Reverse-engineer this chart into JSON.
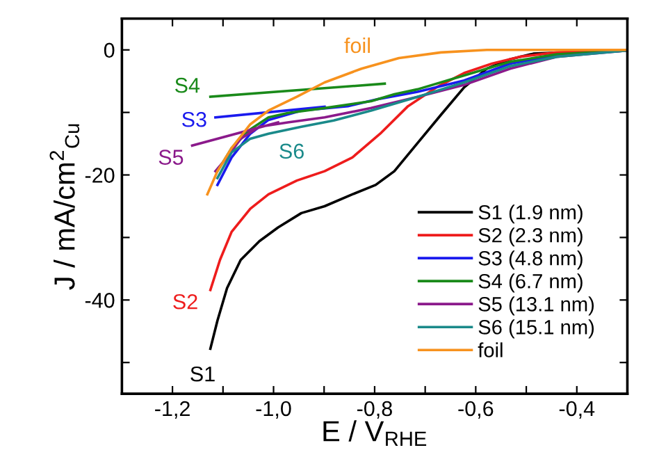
{
  "chart_data": {
    "type": "line",
    "xlabel": "E / V$_{RHE}$",
    "ylabel": "J / mA/cm$^{2}$$_{Cu}$",
    "xlim": [
      -1.3,
      -0.3
    ],
    "ylim": [
      -55,
      5
    ],
    "xticks": [
      {
        "value": -1.3,
        "label": null
      },
      {
        "value": -1.2,
        "label": "-1,2"
      },
      {
        "value": -1.1,
        "label": null
      },
      {
        "value": -1.0,
        "label": "-1,0"
      },
      {
        "value": -0.9,
        "label": null
      },
      {
        "value": -0.8,
        "label": "-0,8"
      },
      {
        "value": -0.7,
        "label": null
      },
      {
        "value": -0.6,
        "label": "-0,6"
      },
      {
        "value": -0.5,
        "label": null
      },
      {
        "value": -0.4,
        "label": "-0,4"
      }
    ],
    "yticks": [
      {
        "value": -50,
        "label": null
      },
      -40,
      {
        "value": -30,
        "label": null
      },
      -20,
      {
        "value": -10,
        "label": null
      },
      0
    ],
    "grid": false,
    "legend": "bottom right",
    "line_style": "solid",
    "marker": "none",
    "series": [
      {
        "name": "S1 (1.9 nm)",
        "color": "#000000",
        "x": [
          -1.125,
          -1.111,
          -1.092,
          -1.065,
          -1.028,
          -0.991,
          -0.945,
          -0.899,
          -0.844,
          -0.798,
          -0.761,
          -0.715,
          -0.669,
          -0.623,
          -0.578,
          -0.532,
          -0.486,
          -0.394,
          -0.302
        ],
        "values": [
          -47.8,
          -43.3,
          -38.1,
          -33.6,
          -30.6,
          -28.4,
          -26.1,
          -25.0,
          -23.1,
          -21.6,
          -19.4,
          -14.9,
          -10.4,
          -6.0,
          -3.0,
          -1.5,
          -0.6,
          -0.3,
          -0.1
        ]
      },
      {
        "name": "S2 (2.3 nm)",
        "color": "#ee1c1c",
        "x": [
          -1.125,
          -1.106,
          -1.083,
          -1.046,
          -1.01,
          -0.954,
          -0.899,
          -0.844,
          -0.789,
          -0.734,
          -0.678,
          -0.623,
          -0.568,
          -0.513,
          -0.44,
          -0.302
        ],
        "values": [
          -38.4,
          -33.6,
          -29.1,
          -25.4,
          -23.1,
          -20.9,
          -19.4,
          -17.2,
          -13.4,
          -9.0,
          -6.0,
          -3.7,
          -2.2,
          -1.1,
          -0.4,
          -0.1
        ]
      },
      {
        "name": "S3 (4.8 nm)",
        "color": "#1a1aee",
        "x": [
          -0.302,
          -0.44,
          -0.532,
          -0.623,
          -0.715,
          -0.789,
          -0.853,
          -0.945,
          -1.01,
          -1.046,
          -1.083,
          -1.111,
          -1.113,
          -1.115,
          -0.899
        ],
        "values": [
          -0.1,
          -0.9,
          -2.2,
          -4.9,
          -6.7,
          -7.8,
          -9.0,
          -9.7,
          -11.2,
          -13.4,
          -17.2,
          -21.6,
          null,
          -10.8,
          -9.1
        ]
      },
      {
        "name": "S4 (6.7 nm)",
        "color": "#1a8a1a",
        "x": [
          -0.302,
          -0.44,
          -0.532,
          -0.623,
          -0.715,
          -0.761,
          -0.807,
          -0.899,
          -0.972,
          -1.01,
          -1.046,
          -1.083,
          -1.111,
          -1.118,
          -1.125,
          -0.78
        ],
        "values": [
          -0.1,
          -0.7,
          -1.9,
          -4.1,
          -6.3,
          -7.1,
          -8.2,
          -9.3,
          -10.1,
          -10.8,
          -12.7,
          -15.7,
          -19.4,
          null,
          -7.5,
          -5.4
        ]
      },
      {
        "name": "S5 (13.1 nm)",
        "color": "#8b1a8b",
        "x": [
          -0.302,
          -0.44,
          -0.532,
          -0.623,
          -0.715,
          -0.807,
          -0.899,
          -0.972,
          -1.028,
          -1.065,
          -1.092,
          -1.115,
          -1.14,
          -1.161,
          -0.991
        ],
        "values": [
          -0.1,
          -1.1,
          -3.0,
          -5.6,
          -7.5,
          -9.3,
          -10.8,
          -11.6,
          -12.3,
          -14.2,
          -17.2,
          -19.4,
          null,
          -15.3,
          -11.6
        ]
      },
      {
        "name": "S6 (15.1 nm)",
        "color": "#1a8a8a",
        "x": [
          -0.302,
          -0.44,
          -0.532,
          -0.623,
          -0.715,
          -0.807,
          -0.881,
          -0.945,
          -1.01,
          -1.046,
          -1.083,
          -1.111
        ],
        "values": [
          -0.1,
          -1.1,
          -2.6,
          -5.2,
          -7.5,
          -9.7,
          -11.3,
          -12.3,
          -13.4,
          -14.2,
          -16.4,
          -20.5
        ]
      },
      {
        "name": "foil",
        "color": "#f7921e",
        "x": [
          -1.131,
          -1.111,
          -1.083,
          -1.046,
          -1.01,
          -0.954,
          -0.899,
          -0.826,
          -0.752,
          -0.669,
          -0.578,
          -0.302
        ],
        "values": [
          -23.1,
          -19.4,
          -15.7,
          -11.9,
          -9.7,
          -7.5,
          -5.2,
          -3.0,
          -1.3,
          -0.4,
          0,
          0
        ]
      }
    ],
    "annotations": [
      "S1",
      "S2",
      "S3",
      "S4",
      "S5",
      "S6",
      "foil"
    ]
  }
}
